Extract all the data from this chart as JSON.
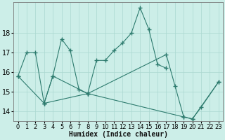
{
  "series": [
    {
      "x": [
        0,
        1,
        2,
        3,
        4,
        5,
        6,
        7,
        8,
        9,
        10,
        11,
        12,
        13,
        14,
        15,
        16,
        17
      ],
      "y": [
        15.8,
        17.0,
        17.0,
        14.4,
        15.8,
        17.7,
        17.1,
        15.1,
        14.9,
        16.6,
        16.6,
        17.1,
        17.5,
        18.0,
        19.3,
        18.2,
        16.4,
        16.2
      ]
    },
    {
      "x": [
        3,
        4,
        8,
        17,
        18,
        19,
        20,
        21,
        23
      ],
      "y": [
        14.4,
        15.8,
        14.9,
        16.9,
        15.3,
        13.7,
        13.6,
        14.2,
        15.5
      ]
    },
    {
      "x": [
        0,
        3,
        8,
        19,
        20,
        23
      ],
      "y": [
        15.8,
        14.4,
        14.9,
        13.7,
        13.6,
        15.5
      ]
    }
  ],
  "color": "#2d7b6e",
  "bg_color": "#cceee8",
  "xlabel": "Humidex (Indice chaleur)",
  "ylim": [
    13.5,
    19.6
  ],
  "xlim": [
    -0.5,
    23.5
  ],
  "yticks": [
    14,
    15,
    16,
    17,
    18
  ],
  "xticks": [
    0,
    1,
    2,
    3,
    4,
    5,
    6,
    7,
    8,
    9,
    10,
    11,
    12,
    13,
    14,
    15,
    16,
    17,
    18,
    19,
    20,
    21,
    22,
    23
  ],
  "grid_color": "#aad8d0",
  "xlabel_fontsize": 7,
  "tick_fontsize": 6
}
